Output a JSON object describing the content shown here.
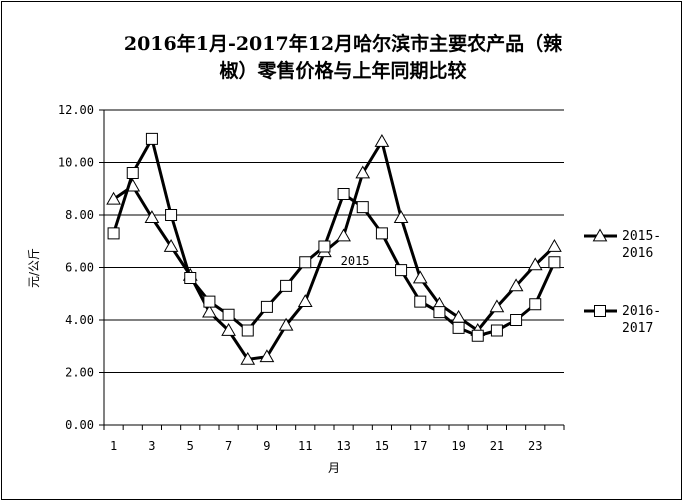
{
  "chart_data": {
    "type": "line",
    "title_lines": [
      "2016年1月-2017年12月哈尔滨市主要农产品（辣",
      "椒）零售价格与上年同期比较"
    ],
    "xlabel": "月",
    "ylabel": "元/公斤",
    "ylim": [
      0,
      12
    ],
    "ytick_labels": [
      "0.00",
      "2.00",
      "4.00",
      "6.00",
      "8.00",
      "10.00",
      "12.00"
    ],
    "xtick_labels": [
      "1",
      "3",
      "5",
      "7",
      "9",
      "11",
      "13",
      "15",
      "17",
      "19",
      "21",
      "23"
    ],
    "x": [
      1,
      2,
      3,
      4,
      5,
      6,
      7,
      8,
      9,
      10,
      11,
      12,
      13,
      14,
      15,
      16,
      17,
      18,
      19,
      20,
      21,
      22,
      23,
      24
    ],
    "grid": "horizontal",
    "legend_position": "right",
    "series": [
      {
        "name": "2015-2016",
        "legend_lines": [
          "2015-",
          "2016"
        ],
        "marker": "triangle",
        "values": [
          8.6,
          9.1,
          7.9,
          6.8,
          5.7,
          4.3,
          3.6,
          2.5,
          2.6,
          3.8,
          4.7,
          6.6,
          7.2,
          9.6,
          10.8,
          7.9,
          5.6,
          4.6,
          4.1,
          3.6,
          4.5,
          5.3,
          6.1,
          6.8
        ]
      },
      {
        "name": "2016-2017",
        "legend_lines": [
          "2016-",
          "2017"
        ],
        "marker": "square",
        "values": [
          7.3,
          9.6,
          10.9,
          8.0,
          5.6,
          4.7,
          4.2,
          3.6,
          4.5,
          5.3,
          6.2,
          6.8,
          8.8,
          8.3,
          7.3,
          5.9,
          4.7,
          4.3,
          3.7,
          3.4,
          3.6,
          4.0,
          4.6,
          6.2
        ]
      }
    ],
    "annotations": [
      {
        "text": "2015",
        "x": 13.6,
        "y": 6.1
      }
    ]
  }
}
